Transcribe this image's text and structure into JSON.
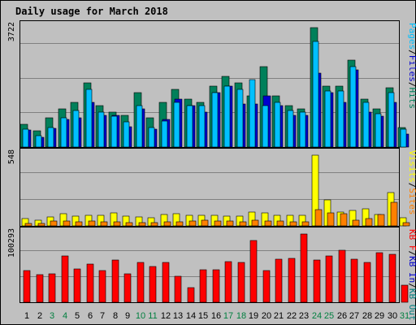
{
  "chart_data": {
    "type": "bar",
    "title": "Daily usage for March 2018",
    "days": [
      "1",
      "2",
      "3",
      "4",
      "5",
      "6",
      "7",
      "8",
      "9",
      "10",
      "11",
      "12",
      "13",
      "14",
      "15",
      "16",
      "17",
      "18",
      "19",
      "20",
      "21",
      "22",
      "23",
      "24",
      "25",
      "26",
      "27",
      "28",
      "29",
      "30",
      "31"
    ],
    "weekend_days": [
      "3",
      "4",
      "10",
      "11",
      "17",
      "18",
      "24",
      "25",
      "31"
    ],
    "colors": {
      "title": "#0000cc",
      "tick": "#000000",
      "tick_weekend": "#007f3f",
      "panel_bg": "#c0c0c0",
      "grid": "#808080",
      "hits": "#00805a",
      "files": "#0000d0",
      "pages": "#00c0ff",
      "visits": "#ffff00",
      "sites": "#ff8000",
      "kbin": "#0000cc",
      "kbout": "#007f7f",
      "kbf": "#ff0000"
    },
    "panels": [
      {
        "ymax_label": "3722",
        "ymax": 3722,
        "legend": [
          "Pages",
          "/",
          "Files",
          "/",
          "Hits"
        ],
        "legend_colors": [
          "pages",
          "sep",
          "files",
          "sep",
          "hits"
        ],
        "series": [
          {
            "name": "Hits",
            "values": [
              700,
              500,
              900,
              1200,
              1400,
              2000,
              1300,
              1100,
              1000,
              1700,
              900,
              1400,
              1800,
              1500,
              1400,
              1900,
              2200,
              2000,
              1600,
              2500,
              1600,
              1300,
              1200,
              3722,
              1900,
              1900,
              2700,
              1500,
              1200,
              1850,
              600
            ]
          },
          {
            "name": "Files",
            "values": [
              520,
              300,
              580,
              860,
              900,
              1400,
              1000,
              1000,
              640,
              1200,
              550,
              850,
              1500,
              1300,
              1100,
              1700,
              1900,
              1350,
              1350,
              1600,
              1300,
              1000,
              1000,
              2300,
              1700,
              1400,
              2400,
              1100,
              950,
              1400,
              400
            ]
          },
          {
            "name": "Pages",
            "values": [
              550,
              350,
              600,
              900,
              1150,
              1800,
              1100,
              950,
              780,
              1300,
              600,
              800,
              1400,
              1300,
              1300,
              1700,
              1900,
              1800,
              2100,
              1300,
              1400,
              1150,
              1100,
              3300,
              1750,
              1750,
              2500,
              1400,
              1050,
              1700,
              550
            ]
          }
        ]
      },
      {
        "ymax_label": "548",
        "ymax": 548,
        "legend": [
          "Visits",
          "/",
          "Sites"
        ],
        "legend_colors": [
          "visits",
          "sep",
          "sites"
        ],
        "series": [
          {
            "name": "Visits",
            "values": [
              55,
              45,
              70,
              95,
              75,
              80,
              80,
              100,
              75,
              70,
              60,
              90,
              95,
              80,
              85,
              85,
              75,
              75,
              110,
              100,
              80,
              85,
              85,
              548,
              200,
              110,
              120,
              130,
              90,
              260,
              60
            ]
          },
          {
            "name": "Sites",
            "values": [
              20,
              20,
              35,
              40,
              30,
              35,
              30,
              30,
              25,
              25,
              25,
              30,
              30,
              35,
              45,
              35,
              35,
              30,
              45,
              40,
              35,
              30,
              30,
              125,
              100,
              95,
              45,
              55,
              90,
              180,
              25
            ]
          }
        ]
      },
      {
        "ymax_label": "100293",
        "ymax": 100293,
        "legend": [
          "KB F",
          "/",
          "KB In",
          "/",
          "KB Out"
        ],
        "legend_colors": [
          "kbf",
          "sep",
          "kbin",
          "sep",
          "kbout"
        ],
        "series": [
          {
            "name": "KB F",
            "values": [
              47000,
              40000,
              42000,
              68000,
              49000,
              56000,
              46000,
              62000,
              42000,
              58000,
              53000,
              58000,
              38000,
              22000,
              48000,
              48000,
              60000,
              59000,
              91000,
              47000,
              63000,
              65000,
              100293,
              62000,
              68000,
              76000,
              63000,
              58000,
              73000,
              70000,
              25000
            ]
          }
        ]
      }
    ]
  }
}
